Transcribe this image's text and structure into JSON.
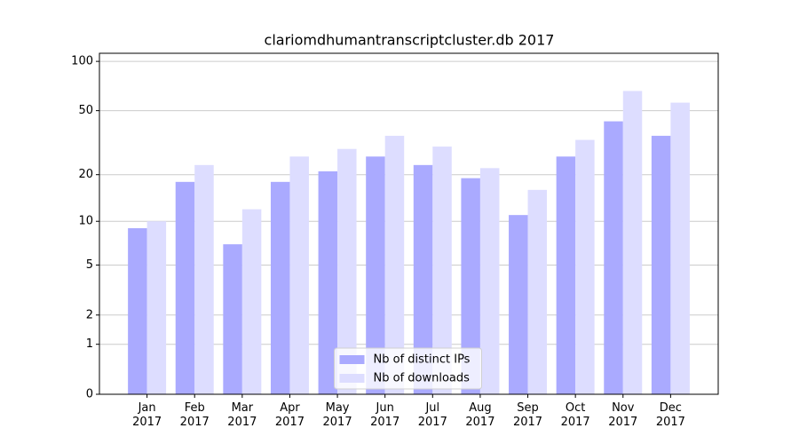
{
  "chart_data": {
    "type": "bar",
    "title": "clariomdhumantranscriptcluster.db 2017",
    "categories": [
      "Jan\n2017",
      "Feb\n2017",
      "Mar\n2017",
      "Apr\n2017",
      "May\n2017",
      "Jun\n2017",
      "Jul\n2017",
      "Aug\n2017",
      "Sep\n2017",
      "Oct\n2017",
      "Nov\n2017",
      "Dec\n2017"
    ],
    "series": [
      {
        "name": "Nb of distinct IPs",
        "color": "#aaaaff",
        "values": [
          9,
          18,
          7,
          18,
          21,
          26,
          23,
          19,
          11,
          26,
          43,
          35
        ]
      },
      {
        "name": "Nb of downloads",
        "color": "#ddddff",
        "values": [
          10,
          23,
          12,
          26,
          29,
          35,
          30,
          22,
          16,
          33,
          66,
          56
        ]
      }
    ],
    "yscale": "log1p",
    "ylim": [
      0,
      112
    ],
    "yticks": [
      0,
      1,
      2,
      5,
      10,
      20,
      50,
      100
    ],
    "grid": true,
    "legend": "lower center"
  }
}
